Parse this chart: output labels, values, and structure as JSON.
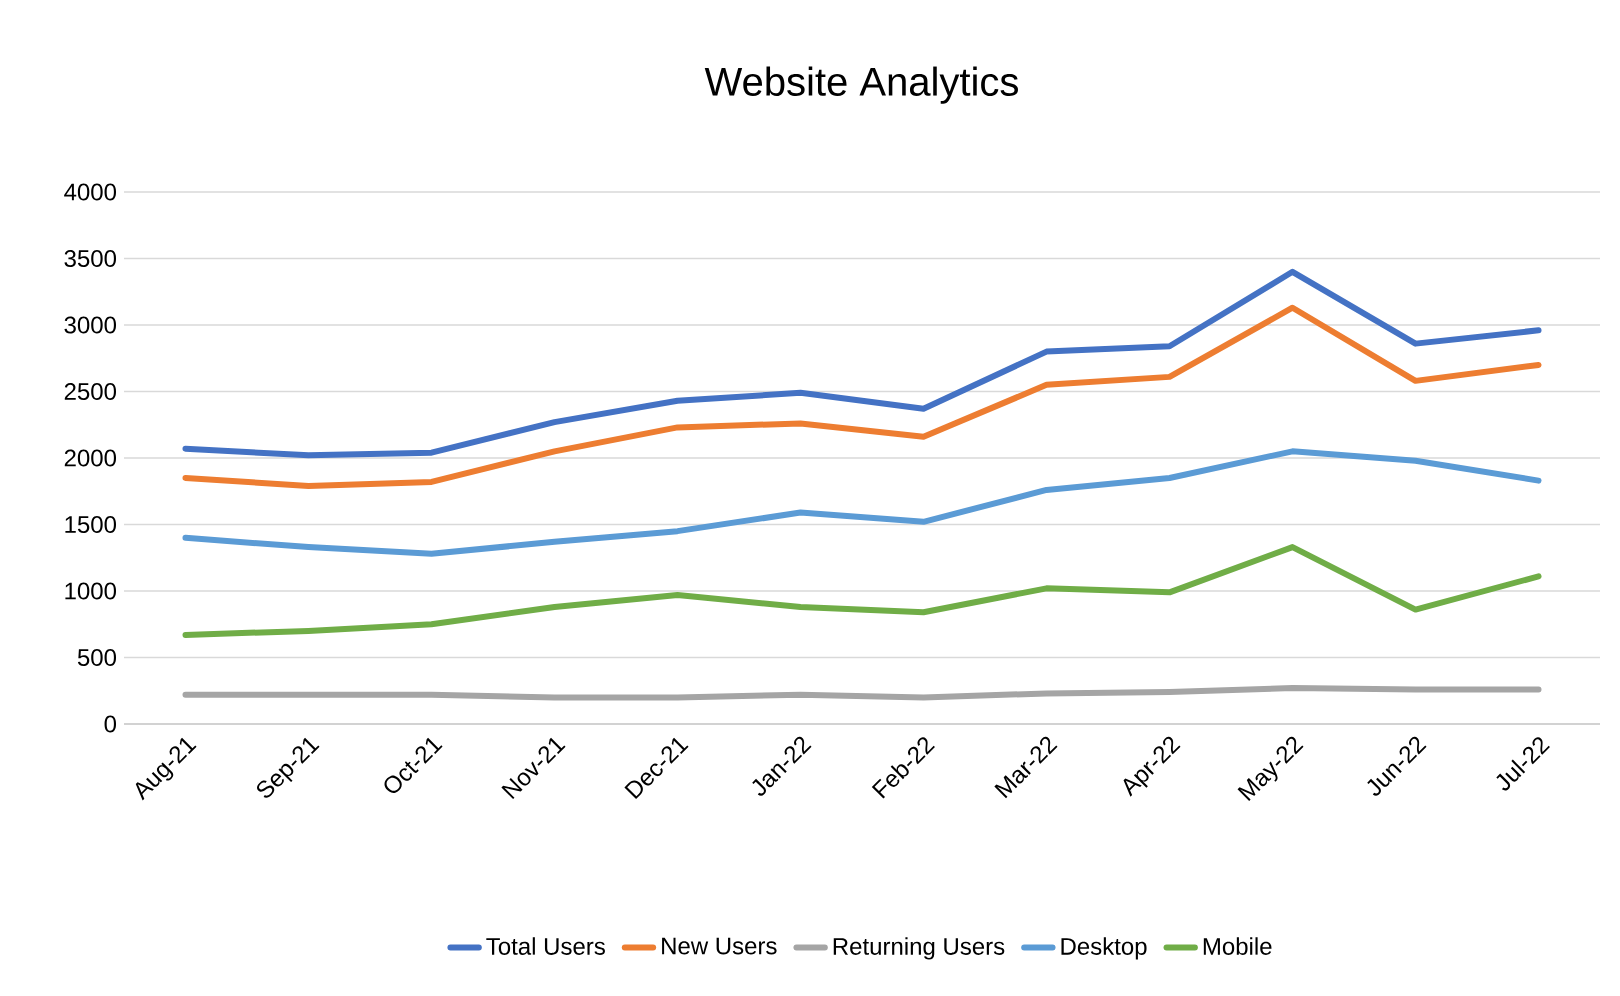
{
  "chart_data": {
    "type": "line",
    "title": "Website Analytics",
    "categories": [
      "Aug-21",
      "Sep-21",
      "Oct-21",
      "Nov-21",
      "Dec-21",
      "Jan-22",
      "Feb-22",
      "Mar-22",
      "Apr-22",
      "May-22",
      "Jun-22",
      "Jul-22"
    ],
    "series": [
      {
        "name": "Total Users",
        "color": "#4472c4",
        "values": [
          2070,
          2020,
          2040,
          2270,
          2430,
          2490,
          2370,
          2800,
          2840,
          3400,
          2860,
          2960
        ]
      },
      {
        "name": "New Users",
        "color": "#ed7d31",
        "values": [
          1850,
          1790,
          1820,
          2050,
          2230,
          2260,
          2160,
          2550,
          2610,
          3130,
          2580,
          2700
        ]
      },
      {
        "name": "Returning Users",
        "color": "#a5a5a5",
        "values": [
          220,
          220,
          220,
          200,
          200,
          220,
          200,
          230,
          240,
          270,
          260,
          260
        ]
      },
      {
        "name": "Desktop",
        "color": "#5b9bd5",
        "values": [
          1400,
          1330,
          1280,
          1370,
          1450,
          1590,
          1520,
          1760,
          1850,
          2050,
          1980,
          1830
        ]
      },
      {
        "name": "Mobile",
        "color": "#70ad47",
        "values": [
          670,
          700,
          750,
          880,
          970,
          880,
          840,
          1020,
          990,
          1330,
          860,
          1110
        ]
      }
    ],
    "ylim": [
      0,
      4000
    ],
    "yticks": [
      0,
      500,
      1000,
      1500,
      2000,
      2500,
      3000,
      3500,
      4000
    ],
    "grid": "y",
    "legend": "bottom",
    "marker": "none",
    "line_style": "solid"
  }
}
